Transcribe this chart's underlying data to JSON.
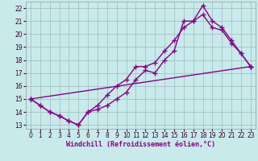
{
  "xlabel": "Windchill (Refroidissement éolien,°C)",
  "background_color": "#c8eaea",
  "grid_color": "#a8c8c8",
  "line_color": "#880088",
  "xlim": [
    -0.5,
    23.5
  ],
  "ylim": [
    12.7,
    22.5
  ],
  "xticks": [
    0,
    1,
    2,
    3,
    4,
    5,
    6,
    7,
    8,
    9,
    10,
    11,
    12,
    13,
    14,
    15,
    16,
    17,
    18,
    19,
    20,
    21,
    22,
    23
  ],
  "yticks": [
    13,
    14,
    15,
    16,
    17,
    18,
    19,
    20,
    21,
    22
  ],
  "line1_x": [
    0,
    1,
    2,
    3,
    4,
    5,
    6,
    7,
    8,
    9,
    10,
    11,
    12,
    13,
    14,
    15,
    16,
    17,
    18,
    19,
    20,
    21,
    22,
    23
  ],
  "line1_y": [
    15,
    14.5,
    14,
    13.7,
    13.3,
    13.0,
    14.0,
    14.2,
    14.5,
    15.0,
    15.5,
    16.5,
    17.2,
    17.0,
    18.0,
    18.7,
    21.0,
    21.0,
    22.2,
    21.0,
    20.5,
    19.5,
    18.5,
    17.5
  ],
  "line2_x": [
    0,
    1,
    2,
    3,
    4,
    5,
    6,
    7,
    8,
    9,
    10,
    11,
    12,
    13,
    14,
    15,
    16,
    17,
    18,
    19,
    20,
    21,
    22,
    23
  ],
  "line2_y": [
    15,
    14.5,
    14,
    13.7,
    13.3,
    13.0,
    14.0,
    14.5,
    15.3,
    16.0,
    16.5,
    17.5,
    17.5,
    17.8,
    18.7,
    19.5,
    20.5,
    21.0,
    21.5,
    20.5,
    20.3,
    19.3,
    18.5,
    17.5
  ],
  "line3_x": [
    0,
    23
  ],
  "line3_y": [
    15.0,
    17.5
  ],
  "marker": "+",
  "markersize": 4,
  "linewidth": 1.0,
  "tick_fontsize": 5.5,
  "xlabel_fontsize": 6.0
}
